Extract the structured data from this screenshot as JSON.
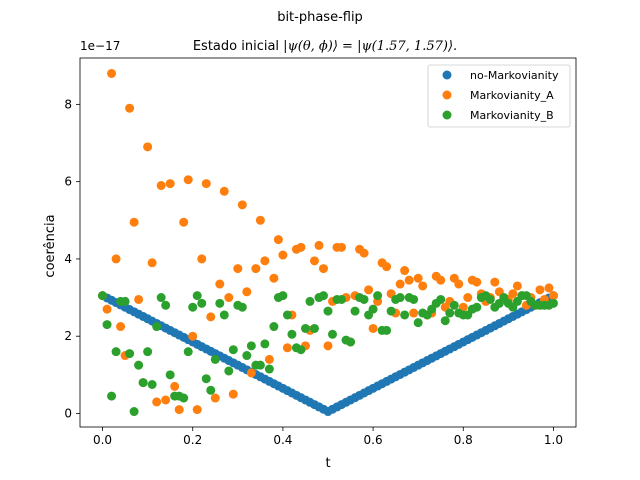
{
  "chart_data": {
    "type": "scatter",
    "suptitle": "bit-phase-flip",
    "title_prefix": "Estado inicial ",
    "title_math": "|ψ(θ, ϕ)⟩ = |ψ(1.57, 1.57)⟩.",
    "xlabel": "t",
    "ylabel": "coerência",
    "y_offset_label": "1e−17",
    "xlim": [
      -0.05,
      1.05
    ],
    "ylim": [
      -0.35,
      9.2
    ],
    "x_ticks": [
      0.0,
      0.2,
      0.4,
      0.6,
      0.8,
      1.0
    ],
    "x_tick_labels": [
      "0.0",
      "0.2",
      "0.4",
      "0.6",
      "0.8",
      "1.0"
    ],
    "y_ticks": [
      0,
      2,
      4,
      6,
      8
    ],
    "y_tick_labels": [
      "0",
      "2",
      "4",
      "6",
      "8"
    ],
    "grid": false,
    "legend_position": "top-right",
    "series": [
      {
        "name": "no-Markovianity",
        "color": "#1f77b4",
        "x_start": 0.0,
        "x_end": 1.0,
        "count": 101,
        "pattern": "v-shape",
        "y_start": 3.05,
        "y_min": 0.05,
        "y_min_at": 0.5,
        "y_end": 3.05
      },
      {
        "name": "Markovianity_A",
        "color": "#ff7f0e",
        "points": [
          [
            0.0,
            3.05
          ],
          [
            0.01,
            2.7
          ],
          [
            0.02,
            8.8
          ],
          [
            0.03,
            4.0
          ],
          [
            0.04,
            2.25
          ],
          [
            0.05,
            1.5
          ],
          [
            0.06,
            7.9
          ],
          [
            0.07,
            4.95
          ],
          [
            0.08,
            2.95
          ],
          [
            0.09,
            0.8
          ],
          [
            0.1,
            6.9
          ],
          [
            0.11,
            3.9
          ],
          [
            0.12,
            0.3
          ],
          [
            0.13,
            5.9
          ],
          [
            0.14,
            0.35
          ],
          [
            0.15,
            5.95
          ],
          [
            0.16,
            0.7
          ],
          [
            0.17,
            0.1
          ],
          [
            0.18,
            4.95
          ],
          [
            0.19,
            6.05
          ],
          [
            0.2,
            2.0
          ],
          [
            0.21,
            0.1
          ],
          [
            0.22,
            4.0
          ],
          [
            0.23,
            5.95
          ],
          [
            0.24,
            2.5
          ],
          [
            0.25,
            0.4
          ],
          [
            0.26,
            3.35
          ],
          [
            0.27,
            5.75
          ],
          [
            0.28,
            3.0
          ],
          [
            0.29,
            0.5
          ],
          [
            0.3,
            3.75
          ],
          [
            0.31,
            5.4
          ],
          [
            0.32,
            3.15
          ],
          [
            0.33,
            1.05
          ],
          [
            0.34,
            3.75
          ],
          [
            0.35,
            5.0
          ],
          [
            0.36,
            3.95
          ],
          [
            0.37,
            1.4
          ],
          [
            0.38,
            3.5
          ],
          [
            0.39,
            4.5
          ],
          [
            0.4,
            4.1
          ],
          [
            0.41,
            1.7
          ],
          [
            0.42,
            2.55
          ],
          [
            0.43,
            4.25
          ],
          [
            0.44,
            4.3
          ],
          [
            0.45,
            1.75
          ],
          [
            0.46,
            2.15
          ],
          [
            0.47,
            3.95
          ],
          [
            0.48,
            4.35
          ],
          [
            0.49,
            3.75
          ],
          [
            0.5,
            1.75
          ],
          [
            0.51,
            2.9
          ],
          [
            0.52,
            4.3
          ],
          [
            0.53,
            4.3
          ],
          [
            0.54,
            3.0
          ],
          [
            0.55,
            1.85
          ],
          [
            0.56,
            3.05
          ],
          [
            0.57,
            4.25
          ],
          [
            0.58,
            4.15
          ],
          [
            0.59,
            3.2
          ],
          [
            0.6,
            2.2
          ],
          [
            0.61,
            2.9
          ],
          [
            0.62,
            3.9
          ],
          [
            0.63,
            3.8
          ],
          [
            0.64,
            3.1
          ],
          [
            0.65,
            2.6
          ],
          [
            0.66,
            3.35
          ],
          [
            0.67,
            3.7
          ],
          [
            0.68,
            3.45
          ],
          [
            0.69,
            2.6
          ],
          [
            0.7,
            3.5
          ],
          [
            0.71,
            3.3
          ],
          [
            0.72,
            2.55
          ],
          [
            0.73,
            2.6
          ],
          [
            0.74,
            3.55
          ],
          [
            0.75,
            3.45
          ],
          [
            0.76,
            2.75
          ],
          [
            0.77,
            2.9
          ],
          [
            0.78,
            3.5
          ],
          [
            0.79,
            3.35
          ],
          [
            0.8,
            2.75
          ],
          [
            0.81,
            3.0
          ],
          [
            0.82,
            3.45
          ],
          [
            0.83,
            3.4
          ],
          [
            0.84,
            3.1
          ],
          [
            0.85,
            2.9
          ],
          [
            0.86,
            3.0
          ],
          [
            0.87,
            3.4
          ],
          [
            0.88,
            3.15
          ],
          [
            0.89,
            2.95
          ],
          [
            0.9,
            2.95
          ],
          [
            0.91,
            3.1
          ],
          [
            0.92,
            3.3
          ],
          [
            0.93,
            3.05
          ],
          [
            0.94,
            2.8
          ],
          [
            0.95,
            3.0
          ],
          [
            0.96,
            2.8
          ],
          [
            0.97,
            3.2
          ],
          [
            0.98,
            2.95
          ],
          [
            0.99,
            3.25
          ],
          [
            1.0,
            3.05
          ]
        ]
      },
      {
        "name": "Markovianity_B",
        "color": "#2ca02c",
        "points": [
          [
            0.0,
            3.05
          ],
          [
            0.01,
            2.3
          ],
          [
            0.02,
            0.45
          ],
          [
            0.03,
            1.6
          ],
          [
            0.04,
            2.9
          ],
          [
            0.05,
            2.9
          ],
          [
            0.06,
            1.55
          ],
          [
            0.07,
            0.05
          ],
          [
            0.08,
            1.25
          ],
          [
            0.09,
            0.8
          ],
          [
            0.1,
            1.6
          ],
          [
            0.11,
            0.75
          ],
          [
            0.12,
            2.25
          ],
          [
            0.13,
            3.0
          ],
          [
            0.14,
            2.8
          ],
          [
            0.15,
            1.0
          ],
          [
            0.16,
            0.45
          ],
          [
            0.17,
            0.45
          ],
          [
            0.18,
            0.4
          ],
          [
            0.19,
            1.6
          ],
          [
            0.2,
            2.75
          ],
          [
            0.21,
            3.05
          ],
          [
            0.22,
            2.85
          ],
          [
            0.23,
            0.9
          ],
          [
            0.24,
            0.6
          ],
          [
            0.25,
            1.4
          ],
          [
            0.26,
            2.85
          ],
          [
            0.27,
            2.55
          ],
          [
            0.28,
            1.1
          ],
          [
            0.29,
            1.65
          ],
          [
            0.3,
            2.8
          ],
          [
            0.31,
            2.75
          ],
          [
            0.32,
            1.5
          ],
          [
            0.33,
            1.75
          ],
          [
            0.34,
            1.25
          ],
          [
            0.35,
            1.25
          ],
          [
            0.36,
            1.8
          ],
          [
            0.37,
            1.15
          ],
          [
            0.38,
            2.25
          ],
          [
            0.39,
            3.0
          ],
          [
            0.4,
            3.05
          ],
          [
            0.41,
            2.55
          ],
          [
            0.42,
            2.05
          ],
          [
            0.43,
            1.7
          ],
          [
            0.44,
            1.65
          ],
          [
            0.45,
            2.2
          ],
          [
            0.46,
            2.9
          ],
          [
            0.47,
            2.2
          ],
          [
            0.48,
            3.0
          ],
          [
            0.49,
            3.05
          ],
          [
            0.5,
            2.65
          ],
          [
            0.51,
            2.05
          ],
          [
            0.52,
            2.95
          ],
          [
            0.53,
            2.95
          ],
          [
            0.54,
            1.9
          ],
          [
            0.55,
            1.85
          ],
          [
            0.56,
            2.65
          ],
          [
            0.57,
            3.0
          ],
          [
            0.58,
            2.95
          ],
          [
            0.59,
            2.55
          ],
          [
            0.6,
            2.7
          ],
          [
            0.61,
            3.05
          ],
          [
            0.62,
            2.15
          ],
          [
            0.63,
            2.15
          ],
          [
            0.64,
            2.65
          ],
          [
            0.65,
            2.95
          ],
          [
            0.66,
            3.0
          ],
          [
            0.67,
            2.55
          ],
          [
            0.68,
            3.0
          ],
          [
            0.69,
            2.95
          ],
          [
            0.7,
            2.35
          ],
          [
            0.71,
            2.6
          ],
          [
            0.72,
            2.55
          ],
          [
            0.73,
            2.7
          ],
          [
            0.74,
            2.85
          ],
          [
            0.75,
            2.95
          ],
          [
            0.76,
            2.4
          ],
          [
            0.77,
            2.6
          ],
          [
            0.78,
            2.8
          ],
          [
            0.79,
            2.6
          ],
          [
            0.8,
            2.55
          ],
          [
            0.81,
            2.55
          ],
          [
            0.82,
            2.7
          ],
          [
            0.83,
            2.75
          ],
          [
            0.84,
            3.0
          ],
          [
            0.85,
            3.05
          ],
          [
            0.86,
            2.95
          ],
          [
            0.87,
            2.75
          ],
          [
            0.88,
            2.85
          ],
          [
            0.89,
            3.0
          ],
          [
            0.9,
            2.85
          ],
          [
            0.91,
            2.75
          ],
          [
            0.92,
            2.9
          ],
          [
            0.93,
            3.05
          ],
          [
            0.94,
            3.05
          ],
          [
            0.95,
            2.9
          ],
          [
            0.96,
            2.8
          ],
          [
            0.97,
            2.8
          ],
          [
            0.98,
            2.8
          ],
          [
            0.99,
            2.8
          ],
          [
            1.0,
            2.85
          ]
        ]
      }
    ]
  }
}
